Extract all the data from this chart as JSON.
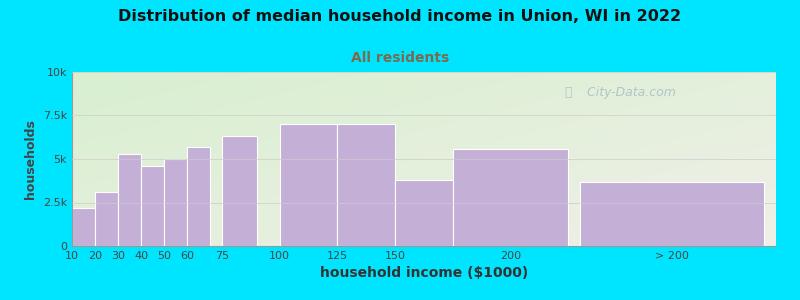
{
  "title": "Distribution of median household income in Union, WI in 2022",
  "subtitle": "All residents",
  "xlabel": "household income ($1000)",
  "ylabel": "households",
  "bar_values": [
    2200,
    3100,
    5300,
    4600,
    5000,
    5700,
    6300,
    7000,
    7000,
    3800,
    5600,
    3700
  ],
  "bar_widths": [
    10,
    10,
    10,
    10,
    10,
    10,
    15,
    25,
    25,
    25,
    50,
    80
  ],
  "bar_lefts": [
    10,
    20,
    30,
    40,
    50,
    60,
    75,
    100,
    125,
    150,
    175,
    230
  ],
  "bar_color": "#c4afd6",
  "bg_color": "#00e5ff",
  "plot_bg_top_left": "#d8efd0",
  "plot_bg_bottom_right": "#f0f0e8",
  "title_color": "#111111",
  "subtitle_color": "#7a6a50",
  "ylim": [
    0,
    10000
  ],
  "yticks": [
    0,
    2500,
    5000,
    7500,
    10000
  ],
  "ytick_labels": [
    "0",
    "2.5k",
    "5k",
    "7.5k",
    "10k"
  ],
  "xtick_positions": [
    10,
    20,
    30,
    40,
    50,
    60,
    75,
    100,
    125,
    150,
    200,
    270
  ],
  "xtick_labels": [
    "10",
    "20",
    "30",
    "40",
    "50",
    "60",
    "75",
    "100",
    "125",
    "150",
    "200",
    "> 200"
  ],
  "watermark": "City-Data.com",
  "watermark_icon": "©"
}
